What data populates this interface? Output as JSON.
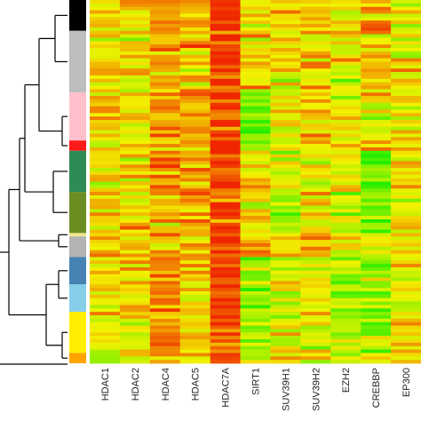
{
  "chart_data": {
    "type": "heatmap",
    "title": "",
    "xlabel": "",
    "ylabel": "",
    "columns": [
      "HDAC1",
      "HDAC2",
      "HDAC4",
      "HDAC5",
      "HDAC7A",
      "SIRT1",
      "SUV39H1",
      "SUV39H2",
      "EZH2",
      "CREBBP",
      "EP300"
    ],
    "color_scale": [
      "#22ee00",
      "#f2f200",
      "#f02600"
    ],
    "value_range": [
      -1,
      1
    ],
    "dendrogram": "rows, left side",
    "cluster_colors": [
      "#000000",
      "#bebebe",
      "#ffc0cb",
      "#ff1a1a",
      "#2e8b57",
      "#6b8e23",
      "#f0e68c",
      "#b3b3b3",
      "#4682b4",
      "#87ceeb",
      "#ffee00",
      "#ffa500"
    ],
    "row_clusters": [
      {
        "color": "#000000",
        "rows": 9,
        "means": [
          0.05,
          0.1,
          0.45,
          0.3,
          0.9,
          0.1,
          0.05,
          0.15,
          0.05,
          0.25,
          0.05
        ]
      },
      {
        "color": "#bebebe",
        "rows": 18,
        "means": [
          0.05,
          0.05,
          0.35,
          0.25,
          0.9,
          0.15,
          0.05,
          0.1,
          0.0,
          0.2,
          0.05
        ]
      },
      {
        "color": "#ffc0cb",
        "rows": 14,
        "means": [
          0.1,
          0.1,
          0.4,
          0.25,
          0.95,
          -0.6,
          0.05,
          0.1,
          0.0,
          0.05,
          0.1
        ]
      },
      {
        "color": "#ff1a1a",
        "rows": 3,
        "means": [
          0.05,
          0.05,
          0.35,
          0.25,
          0.9,
          -0.55,
          0.0,
          0.1,
          0.0,
          0.0,
          0.05
        ]
      },
      {
        "color": "#2e8b57",
        "rows": 12,
        "means": [
          0.1,
          0.1,
          0.5,
          0.35,
          0.9,
          0.05,
          0.0,
          0.05,
          0.05,
          -0.75,
          0.05
        ]
      },
      {
        "color": "#6b8e23",
        "rows": 12,
        "means": [
          0.15,
          0.1,
          0.3,
          0.25,
          0.85,
          0.0,
          -0.4,
          0.2,
          -0.3,
          -0.5,
          0.0
        ]
      },
      {
        "color": "#f0e68c",
        "rows": 1,
        "means": [
          0.2,
          0.2,
          0.35,
          0.3,
          0.85,
          0.3,
          0.25,
          0.7,
          0.1,
          -0.2,
          0.1
        ]
      },
      {
        "color": "#b3b3b3",
        "rows": 6,
        "means": [
          0.1,
          0.1,
          0.3,
          0.2,
          0.85,
          0.2,
          0.1,
          0.3,
          0.05,
          -0.3,
          0.05
        ]
      },
      {
        "color": "#4682b4",
        "rows": 8,
        "means": [
          0.05,
          0.0,
          0.5,
          0.2,
          0.85,
          -0.5,
          -0.2,
          -0.05,
          -0.45,
          -0.5,
          -0.05
        ]
      },
      {
        "color": "#87ceeb",
        "rows": 8,
        "means": [
          0.0,
          0.0,
          0.55,
          0.2,
          0.8,
          -0.55,
          -0.15,
          0.0,
          -0.45,
          -0.4,
          0.0
        ]
      },
      {
        "color": "#ffee00",
        "rows": 12,
        "means": [
          0.05,
          0.05,
          0.55,
          0.15,
          0.8,
          -0.45,
          -0.05,
          0.0,
          -0.4,
          -0.45,
          0.05
        ]
      },
      {
        "color": "#ffa500",
        "rows": 3,
        "means": [
          0.0,
          0.0,
          0.45,
          0.15,
          0.75,
          -0.4,
          0.0,
          0.0,
          -0.35,
          -0.4,
          0.0
        ]
      }
    ],
    "legend": "none"
  }
}
